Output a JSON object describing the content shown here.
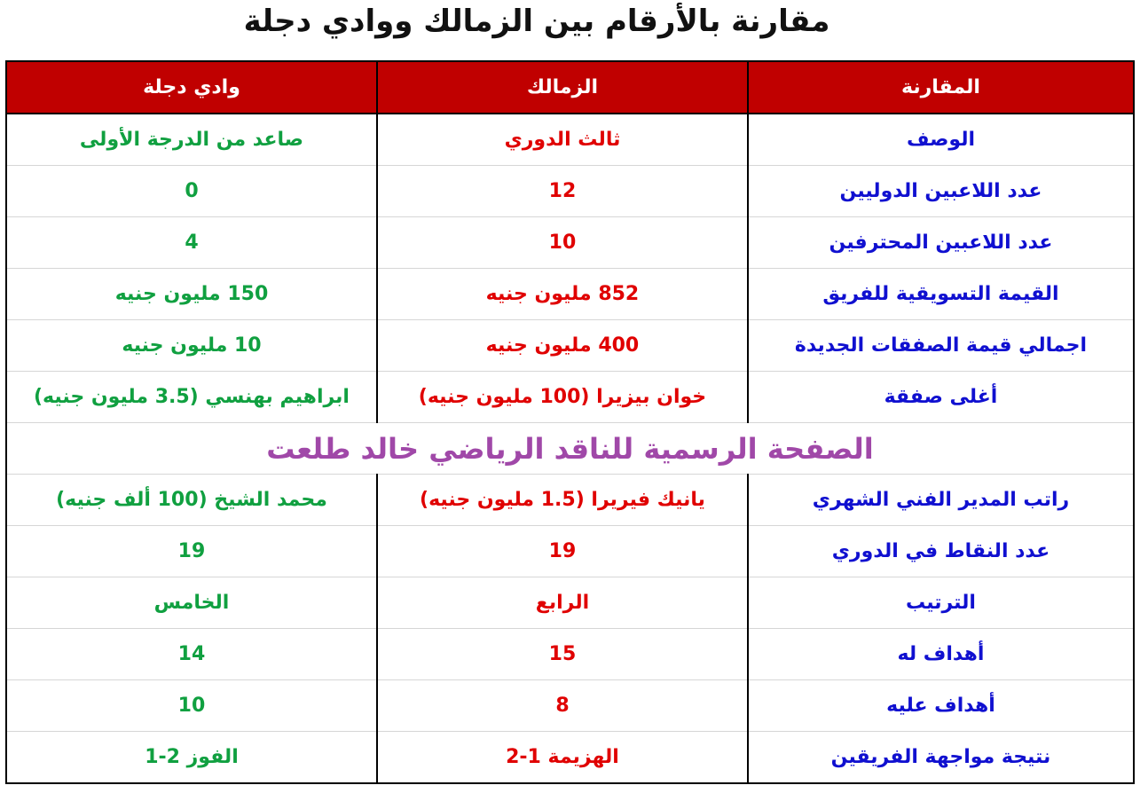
{
  "title": "مقارنة بالأرقام بين الزمالك ووادي دجلة",
  "headers": [
    "المقارنة",
    "الزمالك",
    "وادي دجلة"
  ],
  "rows_top": [
    {
      "label": "الوصف",
      "zamalek": "ثالث الدوري",
      "wadi": "صاعد من الدرجة الأولى"
    },
    {
      "label": "عدد اللاعبين الدوليين",
      "zamalek": "12",
      "wadi": "0"
    },
    {
      "label": "عدد اللاعبين المحترفين",
      "zamalek": "10",
      "wadi": "4"
    },
    {
      "label": "القيمة التسويقية للفريق",
      "zamalek": "852 مليون جنيه",
      "wadi": "150 مليون جنيه"
    },
    {
      "label": "اجمالي قيمة الصفقات الجديدة",
      "zamalek": "400 مليون جنيه",
      "wadi": "10 مليون جنيه"
    },
    {
      "label": "أغلى صفقة",
      "zamalek": "خوان بيزيرا (100 مليون جنيه)",
      "wadi": "ابراهيم بهنسي (3.5 مليون جنيه)"
    }
  ],
  "watermark": "الصفحة الرسمية للناقد الرياضي خالد طلعت",
  "rows_bottom": [
    {
      "label": "راتب المدير الفني الشهري",
      "zamalek": "يانيك فيريرا (1.5 مليون جنيه)",
      "wadi": "محمد الشيخ (100 ألف جنيه)"
    },
    {
      "label": "عدد النقاط في الدوري",
      "zamalek": "19",
      "wadi": "19"
    },
    {
      "label": "الترتيب",
      "zamalek": "الرابع",
      "wadi": "الخامس"
    },
    {
      "label": "أهداف له",
      "zamalek": "15",
      "wadi": "14"
    },
    {
      "label": "أهداف عليه",
      "zamalek": "8",
      "wadi": "10"
    },
    {
      "label": "نتيجة مواجهة الفريقين",
      "zamalek": "الهزيمة 1-2",
      "wadi": "الفوز 2-1"
    }
  ],
  "colors": {
    "header_bg": "#c00000",
    "label": "#1010d0",
    "zamalek": "#e00000",
    "wadi": "#10a040",
    "watermark": "#a048a8"
  }
}
